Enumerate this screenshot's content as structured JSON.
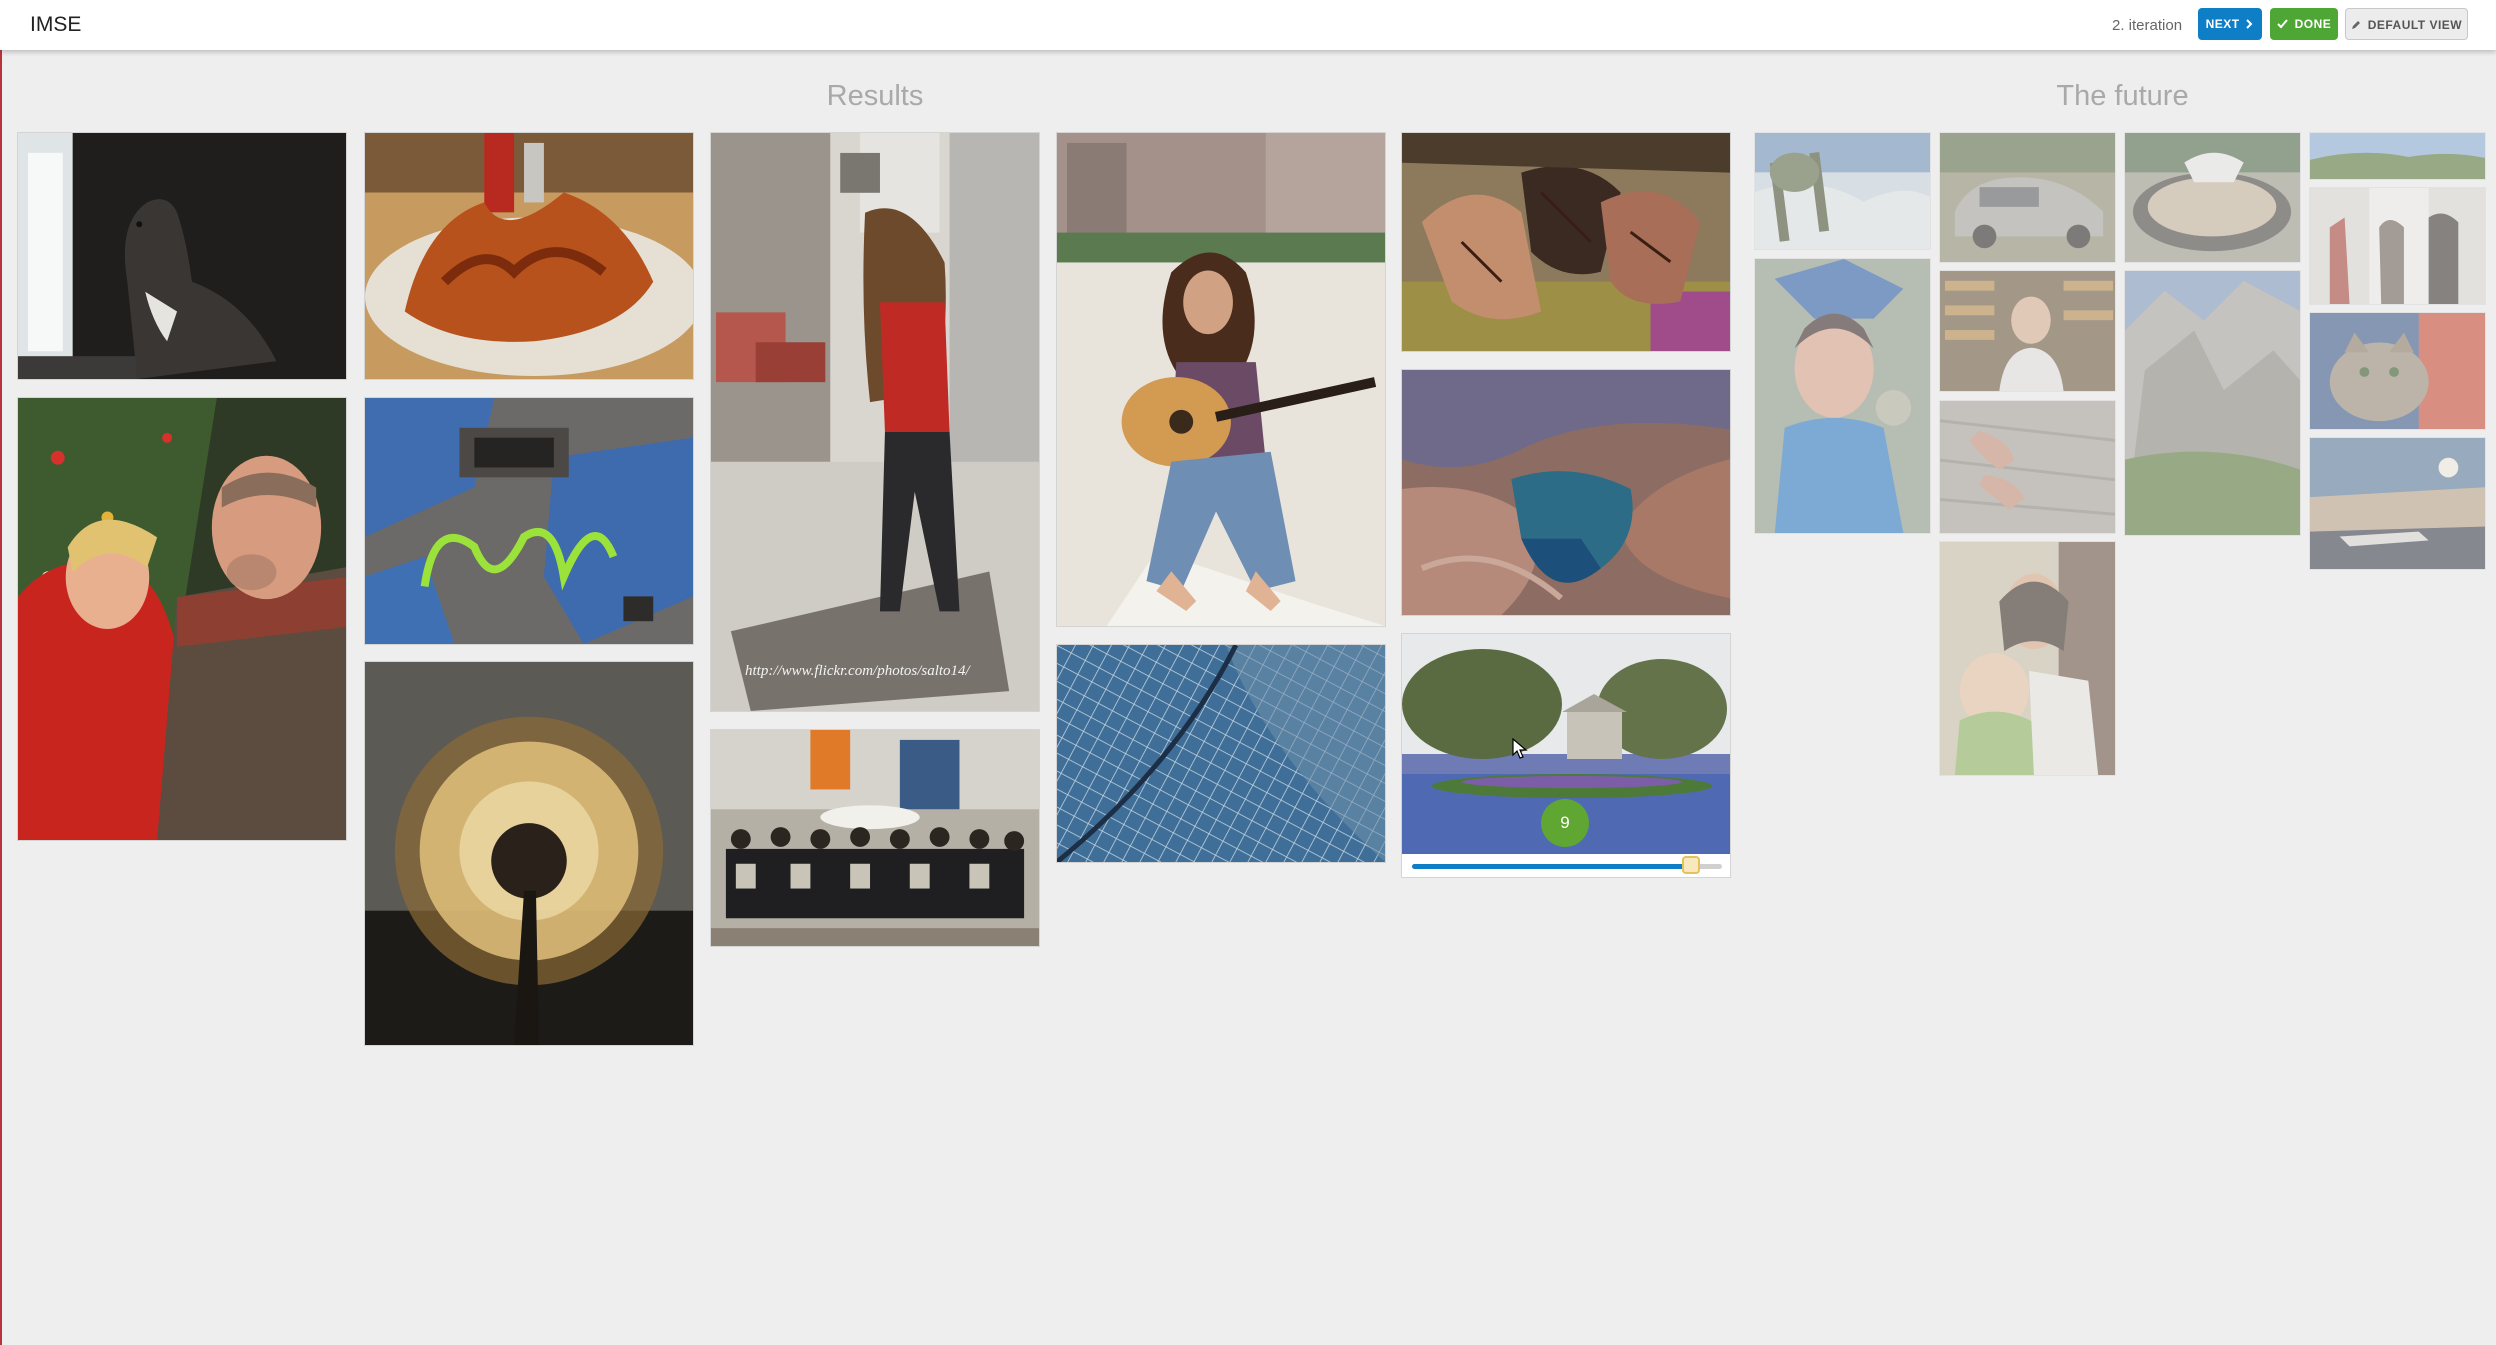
{
  "app": {
    "title": "IMSE"
  },
  "toolbar": {
    "iteration_label": "2. iteration",
    "next_label": "NEXT",
    "done_label": "DONE",
    "default_view_label": "DEFAULT VIEW",
    "next_icon": "chevron-right-icon",
    "done_icon": "check-icon",
    "default_view_icon": "pencil-icon"
  },
  "results": {
    "heading": "Results",
    "images": [
      {
        "subject": "dog-at-window"
      },
      {
        "subject": "fried-chicken-wings"
      },
      {
        "subject": "woman-walking-street",
        "watermark": "http://www.flickr.com/photos/salto14/"
      },
      {
        "subject": "woman-with-guitar"
      },
      {
        "subject": "henna-hands"
      },
      {
        "subject": "christmas-couple"
      },
      {
        "subject": "graffiti-wall"
      },
      {
        "subject": "dandelion-seedhead"
      },
      {
        "subject": "group-with-banner"
      },
      {
        "subject": "glass-roof"
      },
      {
        "subject": "canyon-pool"
      }
    ],
    "rated_image": {
      "subject": "park-with-flowerbed",
      "rating": "9",
      "rating_value": 0.9
    }
  },
  "future": {
    "heading": "The future",
    "images": [
      {
        "subject": "snowy-landscape"
      },
      {
        "subject": "carnival-woman"
      },
      {
        "subject": "rusty-car"
      },
      {
        "subject": "shop-owner"
      },
      {
        "subject": "feet-on-sand"
      },
      {
        "subject": "mother-and-baby"
      },
      {
        "subject": "stone-fountain"
      },
      {
        "subject": "mountain-valley"
      },
      {
        "subject": "hills-panorama"
      },
      {
        "subject": "people-in-hallway"
      },
      {
        "subject": "tabby-cat"
      },
      {
        "subject": "airport-sunset"
      }
    ]
  },
  "colors": {
    "next": "#0e7fc7",
    "done": "#4ea735",
    "rating_badge": "#5fa632"
  }
}
